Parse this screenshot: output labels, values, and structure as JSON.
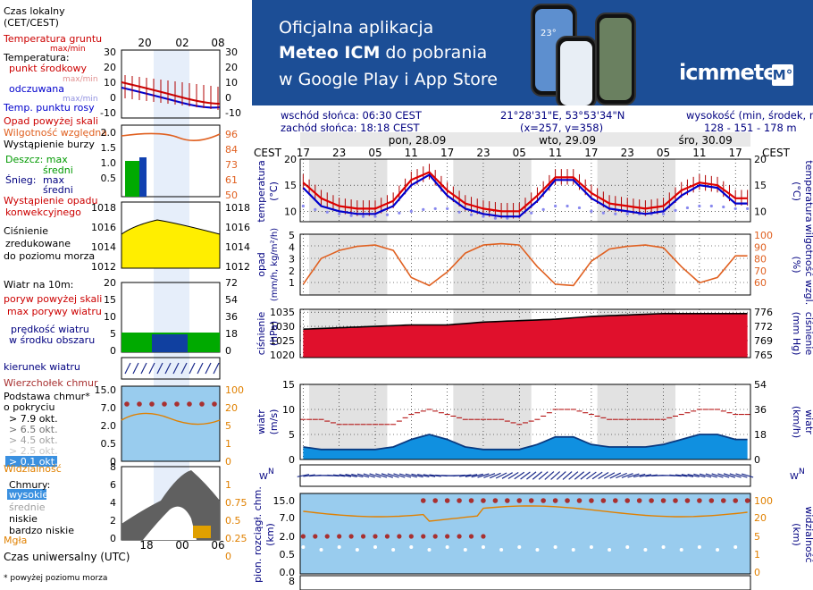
{
  "banner": {
    "line1": "Oficjalna aplikacja",
    "line2_bold": "Meteo ICM",
    "line2_rest": " do pobrania",
    "line3": "w Google Play i App Store",
    "logo_text": "icmmeteo",
    "logo_badge": "M°",
    "phone_temp": "23°"
  },
  "header": {
    "sunrise": "wschód słońca: 06:30 CEST",
    "sunset": "zachód słońca: 18:18 CEST",
    "coords": "21°28'31\"E, 53°53'34\"N",
    "grid": "(x=257,  y=358)",
    "elev_label": "wysokość (min, środek, max)",
    "elev_values": "128 - 151 - 178 m"
  },
  "timeline": {
    "tz": "CEST",
    "days": [
      "pon, 28.09",
      "wto, 29.09",
      "śro, 30.09"
    ],
    "hours": [
      "17",
      "23",
      "05",
      "11",
      "17",
      "23",
      "05",
      "11",
      "17",
      "23",
      "05",
      "11",
      "17"
    ]
  },
  "legend": {
    "local_time_1": "Czas lokalny",
    "local_time_2": "(CET/CEST)",
    "local_hours": [
      "20",
      "02",
      "08"
    ],
    "utc_label": "Czas uniwersalny (UTC)",
    "utc_hours": [
      "18",
      "00",
      "06"
    ],
    "ground_temp_1": "Temperatura gruntu",
    "ground_temp_2": "max/min",
    "temp_title": "Temperatura:",
    "temp_mid": "punkt środkowy",
    "temp_mid_sub": "max/min",
    "temp_feel": "odczuwana",
    "temp_feel_sub": "max/min",
    "temp_dew": "Temp. punktu rosy",
    "temp_ticks_l": [
      "30",
      "20",
      "10",
      "0",
      "-10"
    ],
    "temp_ticks_r": [
      "30",
      "20",
      "10",
      "0",
      "-10"
    ],
    "precip_above": "Opad powyżej skali",
    "humidity": "Wilgotność względna",
    "storm": "Wystąpienie burzy",
    "rain_max": "Deszcz: max",
    "rain_avg": "średni",
    "snow_max": "Śnieg:",
    "snow_max2": "max",
    "snow_avg": "średni",
    "convective_1": "Wystąpienie opadu",
    "convective_2": "konwekcyjnego",
    "precip_ticks_l": [
      "2.0",
      "1.5",
      "1.0",
      "0.5"
    ],
    "precip_ticks_r": [
      "96",
      "84",
      "73",
      "61",
      "50"
    ],
    "pressure_1": "Ciśnienie",
    "pressure_2": "zredukowane",
    "pressure_3": "do poziomu morza",
    "pressure_ticks": [
      "1018",
      "1016",
      "1014",
      "1012"
    ],
    "wind_title": "Wiatr na 10m:",
    "gust_above": "poryw powyżej skali",
    "gust_max": "max porywy wiatru",
    "wind_speed_1": "prędkość wiatru",
    "wind_speed_2": "w środku obszaru",
    "wind_ticks_l": [
      "20",
      "15",
      "10",
      "5",
      "0"
    ],
    "wind_ticks_r": [
      "72",
      "54",
      "36",
      "18",
      "0"
    ],
    "wind_dir": "kierunek wiatru",
    "cloud_top": "Wierzchołek chmur",
    "cloud_base_1": "Podstawa chmur*",
    "cloud_base_2": "o pokryciu",
    "okt": [
      "> 7.9 okt.",
      "> 6.5 okt.",
      "> 4.5 okt.",
      "> 2.5 okt.",
      "> 0.1 okt."
    ],
    "visibility": "Widzialność",
    "cbase_ticks_l": [
      "15.0",
      "7.0",
      "2.0",
      "0.5",
      "0"
    ],
    "cbase_ticks_r": [
      "100",
      "20",
      "5",
      "1",
      "0"
    ],
    "clouds_title": "Chmury:",
    "clouds_high": "wysokie",
    "clouds_mid": "średnie",
    "clouds_low": "niskie",
    "clouds_vlow": "bardzo niskie",
    "fog": "Mgła",
    "clouds_ticks_l": [
      "8",
      "6",
      "4",
      "2",
      "0"
    ],
    "clouds_ticks_r": [
      "1",
      "0.75",
      "0.5",
      "0.25",
      "0"
    ],
    "footnote": "* powyżej poziomu morza"
  },
  "panels": {
    "temp": {
      "ylabel": "temperatura",
      "unit": "(°C)",
      "ticks": [
        "20",
        "15",
        "10"
      ]
    },
    "precip": {
      "ylabel_l": "opad",
      "unit_l": "(mm/h, kg/m²/h)",
      "ticks_l": [
        "5",
        "4",
        "3",
        "2",
        "1"
      ],
      "ylabel_r": "wilgotność wzgl.",
      "unit_r": "(%)",
      "ticks_r": [
        "100",
        "90",
        "80",
        "70",
        "60"
      ]
    },
    "pressure": {
      "ylabel": "ciśnienie",
      "unit_l": "(hPa)",
      "ticks_l": [
        "1035",
        "1030",
        "1025",
        "1020"
      ],
      "unit_r": "(mm Hg)",
      "ticks_r": [
        "776",
        "772",
        "769",
        "765"
      ]
    },
    "wind": {
      "ylabel": "wiatr",
      "unit_l": "(m/s)",
      "ticks_l": [
        "15",
        "10",
        "5",
        "0"
      ],
      "unit_r": "(km/h)",
      "ticks_r": [
        "54",
        "36",
        "18",
        "0"
      ]
    },
    "cloudbase": {
      "ylabel_l": "pion. rozciągł. chm.",
      "unit_l": "(km)",
      "ticks_l": [
        "15.0",
        "7.0",
        "2.0",
        "0.5",
        "0.0"
      ],
      "ylabel_r": "widzialność",
      "unit_r": "(km)",
      "ticks_r": [
        "100",
        "20",
        "5",
        "1",
        "0"
      ]
    },
    "clouds": {
      "ticks_l": [
        "8"
      ]
    }
  },
  "colors": {
    "temp_mid": "#dd0000",
    "temp_feel": "#0000cc",
    "dew": "#8888ee",
    "humidity": "#e06020",
    "pressure_fill": "#e0102c",
    "pressure_small": "#ffee00",
    "wind_fill": "#1090e0",
    "wind_dark": "#0a3a80",
    "grid": "#000000",
    "precip_green": "#00aa00",
    "cloudbase_bg": "#99ccee"
  },
  "chart_data": [
    {
      "type": "line",
      "title": "temperatura",
      "ylabel": "(°C)",
      "ylim": [
        8,
        20
      ],
      "x_hours_from_start": [
        0,
        3,
        6,
        9,
        12,
        15,
        18,
        21,
        24,
        27,
        30,
        33,
        36,
        39,
        42,
        45,
        48,
        51,
        54,
        57,
        60,
        63,
        66,
        69,
        72
      ],
      "series": [
        {
          "name": "punkt środkowy",
          "values": [
            15.5,
            12.5,
            11,
            10.5,
            10.5,
            12,
            16,
            17.5,
            14,
            11.5,
            10.5,
            10,
            10,
            13,
            16.5,
            16.5,
            13.5,
            11.5,
            11,
            10.5,
            11,
            14,
            15.5,
            15,
            12.5
          ]
        },
        {
          "name": "odczuwana",
          "values": [
            14.5,
            11,
            10,
            9.5,
            9.5,
            11,
            15,
            17,
            13,
            10.5,
            9.5,
            9,
            9,
            12,
            16,
            16,
            12.5,
            10.5,
            10,
            9.5,
            10,
            13,
            15,
            14.5,
            11.5
          ]
        },
        {
          "name": "Temp. punktu rosy",
          "values": [
            11,
            10,
            9.5,
            9,
            9,
            9.5,
            10,
            10.5,
            10.5,
            9.5,
            9,
            8.5,
            9,
            10,
            11,
            11,
            10,
            9.5,
            9.5,
            9.5,
            9.5,
            10.5,
            11,
            11,
            10.5
          ]
        }
      ]
    },
    {
      "type": "line",
      "title": "wilgotność wzgl.",
      "ylabel": "(%)",
      "ylim": [
        50,
        100
      ],
      "x_hours_from_start": [
        0,
        3,
        6,
        9,
        12,
        15,
        18,
        21,
        24,
        27,
        30,
        33,
        36,
        39,
        42,
        45,
        48,
        51,
        54,
        57,
        60,
        63,
        66,
        69,
        72
      ],
      "series": [
        {
          "name": "wilgotność wzgl.",
          "values": [
            63,
            82,
            88,
            91,
            92,
            88,
            68,
            62,
            72,
            86,
            92,
            93,
            92,
            76,
            63,
            62,
            80,
            89,
            91,
            92,
            90,
            76,
            64,
            68,
            84
          ]
        }
      ]
    },
    {
      "type": "area",
      "title": "ciśnienie",
      "ylabel": "(hPa)",
      "ylim": [
        1019,
        1036
      ],
      "x_hours_from_start": [
        0,
        6,
        12,
        18,
        24,
        30,
        36,
        42,
        48,
        54,
        60,
        66,
        72
      ],
      "series": [
        {
          "name": "ciśnienie",
          "values": [
            1029,
            1029.5,
            1030,
            1030.5,
            1030.5,
            1031.5,
            1032,
            1032.5,
            1033.5,
            1034,
            1034.5,
            1034.5,
            1034.5
          ]
        }
      ]
    },
    {
      "type": "area",
      "title": "wiatr",
      "ylabel": "(m/s)",
      "ylim": [
        0,
        15
      ],
      "x_hours_from_start": [
        0,
        3,
        6,
        9,
        12,
        15,
        18,
        21,
        24,
        27,
        30,
        33,
        36,
        39,
        42,
        45,
        48,
        51,
        54,
        57,
        60,
        63,
        66,
        69,
        72
      ],
      "series": [
        {
          "name": "prędkość wiatru",
          "values": [
            2.5,
            2,
            2,
            2,
            2,
            2.5,
            4,
            5,
            4,
            2.5,
            2,
            2,
            2,
            3,
            4.5,
            4.5,
            3,
            2.5,
            2.5,
            2.5,
            3,
            4,
            5,
            5,
            4
          ]
        },
        {
          "name": "max porywy wiatru",
          "values": [
            8,
            8,
            7,
            7,
            7,
            7,
            9,
            10,
            9,
            8,
            8,
            8,
            7,
            8,
            10,
            10,
            9,
            8,
            8,
            8,
            8,
            9,
            10,
            10,
            9
          ]
        }
      ]
    }
  ]
}
